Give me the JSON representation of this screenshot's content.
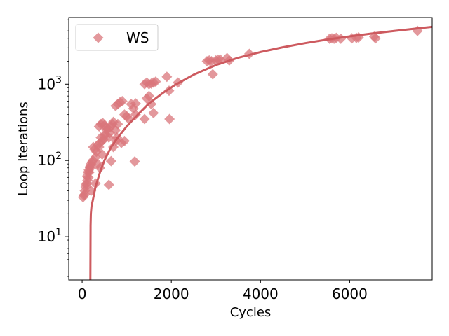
{
  "chart_data": {
    "type": "scatter",
    "xlabel": "Cycles",
    "ylabel": "Loop Iterations",
    "xlim": [
      -300,
      7850
    ],
    "ylim": [
      2.7,
      7500
    ],
    "yscale": "log",
    "x_ticks": [
      0,
      2000,
      4000,
      6000
    ],
    "x_tick_labels": [
      "0",
      "2000",
      "4000",
      "6000"
    ],
    "y_ticks": [
      10,
      100,
      1000
    ],
    "y_tick_labels": [
      "10^1",
      "10^2",
      "10^3"
    ],
    "legend": {
      "entries": [
        "WS"
      ],
      "placement": "top-left"
    },
    "colors": {
      "points": "#d9767b",
      "fit_line": "#cd5a5f"
    },
    "series": [
      {
        "name": "WS",
        "marker": "diamond",
        "points": [
          [
            20,
            33
          ],
          [
            40,
            35
          ],
          [
            60,
            40
          ],
          [
            80,
            45
          ],
          [
            100,
            50
          ],
          [
            120,
            55
          ],
          [
            140,
            60
          ],
          [
            160,
            70
          ],
          [
            180,
            80
          ],
          [
            200,
            90
          ],
          [
            60,
            36
          ],
          [
            90,
            48
          ],
          [
            110,
            62
          ],
          [
            130,
            70
          ],
          [
            150,
            75
          ],
          [
            170,
            82
          ],
          [
            190,
            85
          ],
          [
            220,
            95
          ],
          [
            240,
            100
          ],
          [
            250,
            150
          ],
          [
            280,
            140
          ],
          [
            300,
            110
          ],
          [
            320,
            130
          ],
          [
            350,
            160
          ],
          [
            380,
            150
          ],
          [
            400,
            170
          ],
          [
            420,
            200
          ],
          [
            450,
            180
          ],
          [
            480,
            190
          ],
          [
            500,
            210
          ],
          [
            520,
            220
          ],
          [
            550,
            250
          ],
          [
            580,
            260
          ],
          [
            600,
            200
          ],
          [
            620,
            230
          ],
          [
            650,
            280
          ],
          [
            680,
            300
          ],
          [
            700,
            320
          ],
          [
            750,
            250
          ],
          [
            780,
            200
          ],
          [
            800,
            300
          ],
          [
            300,
            50
          ],
          [
            350,
            90
          ],
          [
            400,
            80
          ],
          [
            450,
            120
          ],
          [
            200,
            40
          ],
          [
            600,
            48
          ],
          [
            650,
            98
          ],
          [
            700,
            150
          ],
          [
            760,
            180
          ],
          [
            380,
            280
          ],
          [
            420,
            300
          ],
          [
            460,
            310
          ],
          [
            500,
            290
          ],
          [
            540,
            270
          ],
          [
            750,
            520
          ],
          [
            800,
            550
          ],
          [
            850,
            580
          ],
          [
            900,
            600
          ],
          [
            950,
            400
          ],
          [
            1000,
            380
          ],
          [
            1050,
            350
          ],
          [
            1100,
            550
          ],
          [
            1150,
            480
          ],
          [
            1200,
            560
          ],
          [
            880,
            170
          ],
          [
            950,
            180
          ],
          [
            1180,
            97
          ],
          [
            1200,
            400
          ],
          [
            1400,
            1000
          ],
          [
            1450,
            1050
          ],
          [
            1500,
            1000
          ],
          [
            1550,
            1020
          ],
          [
            1600,
            1050
          ],
          [
            1650,
            1080
          ],
          [
            1900,
            1250
          ],
          [
            1450,
            650
          ],
          [
            1500,
            700
          ],
          [
            1550,
            550
          ],
          [
            1600,
            420
          ],
          [
            1400,
            350
          ],
          [
            1950,
            820
          ],
          [
            1960,
            350
          ],
          [
            2150,
            1050
          ],
          [
            2800,
            2000
          ],
          [
            2850,
            2050
          ],
          [
            2900,
            2000
          ],
          [
            3000,
            2050
          ],
          [
            3050,
            2100
          ],
          [
            3100,
            2100
          ],
          [
            3250,
            2200
          ],
          [
            3300,
            2050
          ],
          [
            3750,
            2500
          ],
          [
            2930,
            1350
          ],
          [
            5550,
            3950
          ],
          [
            5600,
            4000
          ],
          [
            5650,
            3950
          ],
          [
            5700,
            4050
          ],
          [
            5800,
            3950
          ],
          [
            6050,
            4000
          ],
          [
            6150,
            4050
          ],
          [
            6200,
            4100
          ],
          [
            6550,
            4200
          ],
          [
            6580,
            4000
          ],
          [
            7520,
            5000
          ]
        ]
      }
    ],
    "fit_line": [
      [
        185,
        2.7
      ],
      [
        188,
        8
      ],
      [
        190,
        14
      ],
      [
        195,
        20
      ],
      [
        210,
        25
      ],
      [
        240,
        30
      ],
      [
        300,
        45
      ],
      [
        400,
        70
      ],
      [
        500,
        100
      ],
      [
        650,
        150
      ],
      [
        800,
        200
      ],
      [
        1000,
        280
      ],
      [
        1250,
        400
      ],
      [
        1500,
        560
      ],
      [
        1800,
        760
      ],
      [
        2100,
        990
      ],
      [
        2500,
        1330
      ],
      [
        3000,
        1780
      ],
      [
        3500,
        2220
      ],
      [
        4000,
        2640
      ],
      [
        4500,
        3050
      ],
      [
        5000,
        3450
      ],
      [
        5500,
        3850
      ],
      [
        6000,
        4240
      ],
      [
        6500,
        4620
      ],
      [
        7000,
        5000
      ],
      [
        7500,
        5380
      ],
      [
        7850,
        5650
      ]
    ]
  }
}
